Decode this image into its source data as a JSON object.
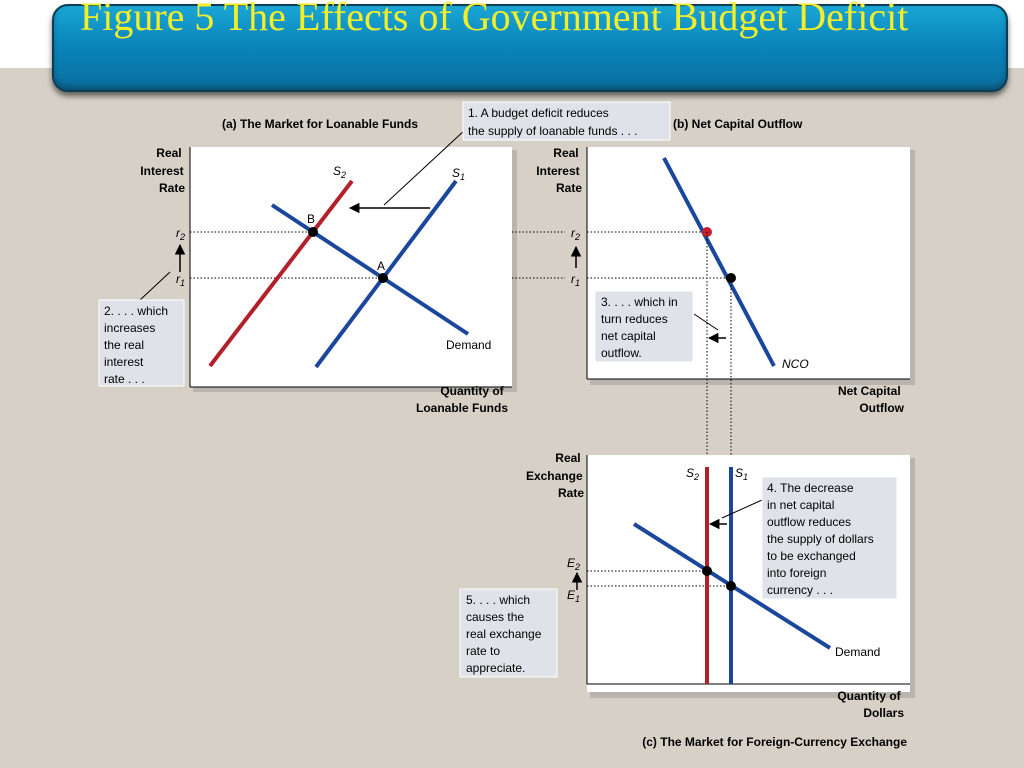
{
  "title": "Figure 5 The Effects of Government Budget Deficit",
  "colors": {
    "title_bar": "#0a86bc",
    "title_text": "#f3ee2a",
    "curve_blue": "#1a479c",
    "curve_red": "#b2202a",
    "callout_bg": "#dfe2e8",
    "background": "#d6d0c6"
  },
  "panel_a": {
    "title": "(a) The Market for Loanable Funds",
    "y_axis": [
      "Real",
      "Interest",
      "Rate"
    ],
    "x_axis": [
      "Quantity of",
      "Loanable Funds"
    ],
    "supply_new": "S",
    "supply_new_sub": "2",
    "supply_old": "S",
    "supply_old_sub": "1",
    "demand": "Demand",
    "point_b": "B",
    "point_a": "A",
    "r2": "r",
    "r2_sub": "2",
    "r1": "r",
    "r1_sub": "1"
  },
  "panel_b": {
    "title": "(b) Net Capital Outflow",
    "y_axis": [
      "Real",
      "Interest",
      "Rate"
    ],
    "x_axis": [
      "Net Capital",
      "Outflow"
    ],
    "curve": "NCO",
    "r2": "r",
    "r2_sub": "2",
    "r1": "r",
    "r1_sub": "1"
  },
  "panel_c": {
    "title": "(c) The Market for Foreign-Currency Exchange",
    "y_axis": [
      "Real",
      "Exchange",
      "Rate"
    ],
    "x_axis": [
      "Quantity of",
      "Dollars"
    ],
    "supply_new": "S",
    "supply_new_sub": "2",
    "supply_old": "S",
    "supply_old_sub": "1",
    "demand": "Demand",
    "e2": "E",
    "e2_sub": "2",
    "e1": "E",
    "e1_sub": "1"
  },
  "callouts": {
    "c1": [
      "1. A budget deficit reduces",
      "the supply of loanable funds . . ."
    ],
    "c2": [
      "2. . . . which",
      "increases",
      "the real",
      "interest",
      "rate . . ."
    ],
    "c3": [
      "3. . . . which in",
      "turn reduces",
      "net capital",
      "outflow."
    ],
    "c4": [
      "4. The decrease",
      "in net capital",
      "outflow reduces",
      "the supply of dollars",
      "to be exchanged",
      "into foreign",
      "currency . . ."
    ],
    "c5": [
      "5. . . . which",
      "causes the",
      "real exchange",
      "rate to",
      "appreciate."
    ]
  }
}
